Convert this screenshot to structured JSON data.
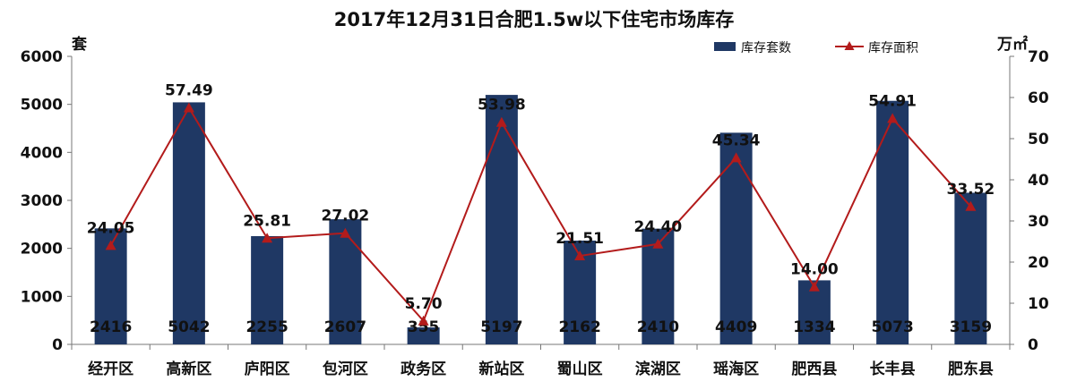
{
  "chart_data": {
    "type": "bar",
    "title": "2017年12月31日合肥1.5w以下住宅市场库存",
    "ylabel": "套",
    "y2label": "万㎡",
    "ylim": [
      0,
      6000
    ],
    "y2lim": [
      0,
      70
    ],
    "yticks": [
      "0",
      "1000",
      "2000",
      "3000",
      "4000",
      "5000",
      "6000"
    ],
    "y2ticks": [
      "0",
      "10",
      "20",
      "30",
      "40",
      "50",
      "60",
      "70"
    ],
    "grid": false,
    "legend_position": "top-right",
    "categories": [
      "经开区",
      "高新区",
      "庐阳区",
      "包河区",
      "政务区",
      "新站区",
      "蜀山区",
      "滨湖区",
      "瑶海区",
      "肥西县",
      "长丰县",
      "肥东县"
    ],
    "series": [
      {
        "name": "库存套数",
        "type": "bar",
        "axis": "left",
        "color": "#1f3864",
        "values": [
          2416,
          5042,
          2255,
          2607,
          355,
          5197,
          2162,
          2410,
          4409,
          1334,
          5073,
          3159
        ],
        "labels": [
          "2416",
          "5042",
          "2255",
          "2607",
          "355",
          "5197",
          "2162",
          "2410",
          "4409",
          "1334",
          "5073",
          "3159"
        ]
      },
      {
        "name": "库存面积",
        "type": "line",
        "axis": "right",
        "color": "#b31b1b",
        "marker": "triangle",
        "values": [
          24.05,
          57.49,
          25.81,
          27.02,
          5.7,
          53.98,
          21.51,
          24.4,
          45.34,
          14.0,
          54.91,
          33.52
        ],
        "labels": [
          "24.05",
          "57.49",
          "25.81",
          "27.02",
          "5.70",
          "53.98",
          "21.51",
          "24.40",
          "45.34",
          "14.00",
          "54.91",
          "33.52"
        ]
      }
    ]
  }
}
